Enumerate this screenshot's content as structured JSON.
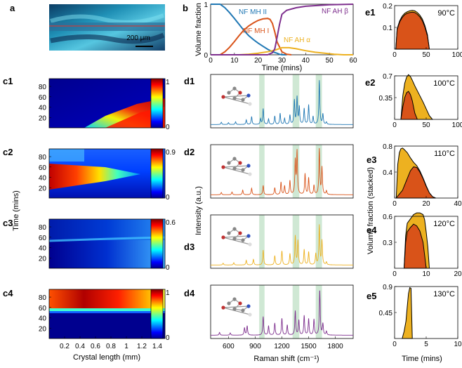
{
  "colors": {
    "mh2": "#1f77b4",
    "mh1": "#d95319",
    "ah_alpha": "#edb120",
    "ah_beta": "#7e2f8e",
    "highlight": "#cfe8d4",
    "stacked_dark": "#d95319",
    "stacked_light": "#edb120"
  },
  "panel_labels": {
    "a": "a",
    "b": "b",
    "c1": "c1",
    "c2": "c2",
    "c3": "c3",
    "c4": "c4",
    "d1": "d1",
    "d2": "d2",
    "d3": "d3",
    "d4": "d4",
    "e1": "e1",
    "e2": "e2",
    "e3": "e3",
    "e4": "e4",
    "e5": "e5"
  },
  "microscope": {
    "scalebar_label": "200 μm"
  },
  "chart_data": [
    {
      "id": "b",
      "type": "line",
      "xlabel": "Time (mins)",
      "ylabel": "Volume fraction",
      "xlim": [
        0,
        60
      ],
      "ylim": [
        0,
        1
      ],
      "xticks": [
        "0",
        "10",
        "20",
        "30",
        "40",
        "50",
        "60"
      ],
      "yticks": [
        "0",
        "1"
      ],
      "series": [
        {
          "name": "NF MH II",
          "color": "#1f77b4",
          "x": [
            0,
            4,
            6,
            8,
            10,
            12,
            14,
            16,
            18,
            20,
            22,
            24,
            26,
            28,
            29,
            30,
            32
          ],
          "y": [
            1,
            1,
            0.93,
            0.83,
            0.72,
            0.6,
            0.48,
            0.38,
            0.3,
            0.23,
            0.17,
            0.11,
            0.06,
            0.03,
            0.01,
            0,
            0
          ]
        },
        {
          "name": "NF MH I",
          "color": "#d95319",
          "x": [
            0,
            4,
            6,
            8,
            10,
            12,
            14,
            16,
            18,
            20,
            22,
            24,
            25,
            26,
            27,
            28,
            30,
            32,
            34
          ],
          "y": [
            0,
            0,
            0.06,
            0.15,
            0.26,
            0.38,
            0.49,
            0.57,
            0.63,
            0.68,
            0.71,
            0.72,
            0.7,
            0.62,
            0.45,
            0.25,
            0.06,
            0.01,
            0
          ]
        },
        {
          "name": "NF AH α",
          "color": "#edb120",
          "x": [
            0,
            12,
            16,
            20,
            24,
            27,
            30,
            33,
            36,
            40,
            44,
            48,
            52,
            56,
            60
          ],
          "y": [
            0,
            0,
            0.01,
            0.03,
            0.06,
            0.09,
            0.14,
            0.14,
            0.12,
            0.08,
            0.05,
            0.03,
            0.01,
            0,
            0
          ]
        },
        {
          "name": "NF AH β",
          "color": "#7e2f8e",
          "x": [
            0,
            24,
            26,
            27,
            28,
            29,
            30,
            32,
            36,
            40,
            50,
            60
          ],
          "y": [
            0,
            0,
            0.04,
            0.12,
            0.35,
            0.6,
            0.8,
            0.88,
            0.93,
            0.96,
            0.99,
            1
          ]
        }
      ]
    },
    {
      "id": "c",
      "type": "heatmap",
      "xlabel": "Crystal length (mm)",
      "ylabel": "Time (mins)",
      "xticks": [
        "0.2",
        "0.4",
        "0.6",
        "0.8",
        "1",
        "1.2",
        "1.4"
      ],
      "yticks": [
        "20",
        "40",
        "60",
        "80"
      ],
      "panels": [
        {
          "label": "c1",
          "colorbar_ticks": [
            "0",
            "1"
          ],
          "colorbar_range": [
            0,
            1
          ]
        },
        {
          "label": "c2",
          "colorbar_ticks": [
            "0",
            "0.9"
          ],
          "colorbar_range": [
            0,
            0.9
          ]
        },
        {
          "label": "c3",
          "colorbar_ticks": [
            "0",
            "0.6"
          ],
          "colorbar_range": [
            0,
            0.6
          ]
        },
        {
          "label": "c4",
          "colorbar_ticks": [
            "0",
            "1"
          ],
          "colorbar_range": [
            0,
            1
          ]
        }
      ]
    },
    {
      "id": "d",
      "type": "line",
      "xlabel": "Raman shift (cm⁻¹)",
      "ylabel": "Intensity (a.u.)",
      "xlim": [
        400,
        2000
      ],
      "xticks": [
        "600",
        "900",
        "1200",
        "1500",
        "1800"
      ],
      "highlight_bands_cm1": [
        [
          945,
          1005
        ],
        [
          1320,
          1395
        ],
        [
          1580,
          1650
        ]
      ],
      "series": [
        {
          "name": "d1",
          "color": "#1f77b4",
          "peaks": [
            [
              520,
              0.05
            ],
            [
              600,
              0.04
            ],
            [
              680,
              0.06
            ],
            [
              800,
              0.1
            ],
            [
              860,
              0.17
            ],
            [
              960,
              0.12
            ],
            [
              990,
              0.34
            ],
            [
              1050,
              0.12
            ],
            [
              1120,
              0.18
            ],
            [
              1180,
              0.24
            ],
            [
              1230,
              0.13
            ],
            [
              1290,
              0.2
            ],
            [
              1340,
              0.52
            ],
            [
              1370,
              0.58
            ],
            [
              1395,
              0.37
            ],
            [
              1450,
              0.34
            ],
            [
              1500,
              0.42
            ],
            [
              1550,
              0.17
            ],
            [
              1620,
              0.95
            ],
            [
              1660,
              0.22
            ],
            [
              1700,
              0.05
            ]
          ]
        },
        {
          "name": "d2",
          "color": "#d95319",
          "peaks": [
            [
              520,
              0.05
            ],
            [
              640,
              0.06
            ],
            [
              760,
              0.1
            ],
            [
              860,
              0.14
            ],
            [
              990,
              0.2
            ],
            [
              1120,
              0.15
            ],
            [
              1190,
              0.27
            ],
            [
              1230,
              0.19
            ],
            [
              1290,
              0.3
            ],
            [
              1350,
              0.72
            ],
            [
              1370,
              0.92
            ],
            [
              1460,
              0.45
            ],
            [
              1500,
              0.36
            ],
            [
              1560,
              0.2
            ],
            [
              1620,
              0.98
            ],
            [
              1650,
              0.58
            ],
            [
              1700,
              0.08
            ]
          ]
        },
        {
          "name": "d3",
          "color": "#edb120",
          "peaks": [
            [
              540,
              0.04
            ],
            [
              660,
              0.05
            ],
            [
              800,
              0.1
            ],
            [
              880,
              0.12
            ],
            [
              990,
              0.32
            ],
            [
              1120,
              0.2
            ],
            [
              1200,
              0.3
            ],
            [
              1290,
              0.24
            ],
            [
              1350,
              0.62
            ],
            [
              1380,
              0.52
            ],
            [
              1450,
              0.33
            ],
            [
              1500,
              0.28
            ],
            [
              1580,
              0.24
            ],
            [
              1620,
              0.85
            ],
            [
              1650,
              0.52
            ],
            [
              1700,
              0.06
            ]
          ]
        },
        {
          "name": "d4",
          "color": "#7e2f8e",
          "peaks": [
            [
              500,
              0.06
            ],
            [
              620,
              0.05
            ],
            [
              780,
              0.16
            ],
            [
              810,
              0.2
            ],
            [
              990,
              0.4
            ],
            [
              1050,
              0.2
            ],
            [
              1120,
              0.26
            ],
            [
              1200,
              0.36
            ],
            [
              1260,
              0.22
            ],
            [
              1350,
              0.52
            ],
            [
              1390,
              0.32
            ],
            [
              1450,
              0.42
            ],
            [
              1500,
              0.35
            ],
            [
              1560,
              0.34
            ],
            [
              1625,
              0.97
            ],
            [
              1660,
              0.24
            ],
            [
              1700,
              0.08
            ]
          ]
        }
      ]
    },
    {
      "id": "e",
      "type": "area",
      "ylabel": "Volume fraction (stacked)",
      "xlabel": "Time (mins)",
      "panels": [
        {
          "label": "e1",
          "temp": "90°C",
          "xlim": [
            0,
            100
          ],
          "ylim": [
            0,
            0.2
          ],
          "xticks": [
            "0",
            "50",
            "100"
          ],
          "yticks": [
            "0.1",
            "0.2"
          ],
          "ytick_values": [
            0.1,
            0.2
          ],
          "x": [
            2,
            4,
            8,
            12,
            16,
            20,
            24,
            28,
            32,
            36,
            40,
            44,
            48,
            52,
            55
          ],
          "lower": [
            0,
            0.09,
            0.125,
            0.145,
            0.158,
            0.165,
            0.168,
            0.17,
            0.168,
            0.16,
            0.148,
            0.13,
            0.1,
            0.06,
            0
          ],
          "upper": [
            0,
            0.094,
            0.13,
            0.152,
            0.165,
            0.172,
            0.176,
            0.178,
            0.176,
            0.168,
            0.156,
            0.138,
            0.108,
            0.066,
            0
          ]
        },
        {
          "label": "e2",
          "temp": "100°C",
          "xlim": [
            0,
            100
          ],
          "ylim": [
            0,
            0.7
          ],
          "xticks": [
            "0",
            "50",
            "100"
          ],
          "yticks": [
            "0.35",
            "0.7"
          ],
          "ytick_values": [
            0.35,
            0.7
          ],
          "x": [
            10,
            13,
            16,
            19,
            22,
            25,
            28,
            32,
            36,
            40,
            45,
            50,
            55,
            60
          ],
          "lower": [
            0,
            0.2,
            0.35,
            0.43,
            0.45,
            0.4,
            0.3,
            0.1,
            0,
            0,
            0,
            0,
            0,
            0
          ],
          "upper": [
            0,
            0.38,
            0.58,
            0.68,
            0.72,
            0.69,
            0.63,
            0.54,
            0.46,
            0.38,
            0.28,
            0.17,
            0.06,
            0
          ]
        },
        {
          "label": "e3",
          "temp": "110°C",
          "xlim": [
            0,
            40
          ],
          "ylim": [
            0,
            0.8
          ],
          "xticks": [
            "0",
            "20",
            "40"
          ],
          "yticks": [
            "0.4",
            "0.8"
          ],
          "ytick_values": [
            0.4,
            0.8
          ],
          "x": [
            1,
            2,
            3,
            4,
            5,
            6,
            8,
            10,
            12,
            14,
            16,
            18,
            20,
            22,
            24,
            26
          ],
          "lower": [
            0,
            0.03,
            0.06,
            0.09,
            0.12,
            0.18,
            0.3,
            0.42,
            0.48,
            0.47,
            0.4,
            0.3,
            0.18,
            0.08,
            0.02,
            0
          ],
          "upper": [
            0,
            0.52,
            0.7,
            0.76,
            0.77,
            0.75,
            0.7,
            0.62,
            0.55,
            0.5,
            0.42,
            0.31,
            0.19,
            0.08,
            0.02,
            0
          ]
        },
        {
          "label": "e4",
          "temp": "120°C",
          "xlim": [
            0,
            20
          ],
          "ylim": [
            0,
            0.6
          ],
          "xticks": [
            "0",
            "10",
            "20"
          ],
          "yticks": [
            "0.3",
            "0.6"
          ],
          "ytick_values": [
            0.3,
            0.6
          ],
          "x": [
            3,
            3.5,
            4,
            5,
            6,
            7,
            8,
            9,
            9.5,
            10,
            10.5,
            11
          ],
          "lower": [
            0,
            0.3,
            0.42,
            0.47,
            0.51,
            0.49,
            0.43,
            0.3,
            0.15,
            0,
            0,
            0
          ],
          "upper": [
            0,
            0.38,
            0.52,
            0.57,
            0.62,
            0.64,
            0.64,
            0.62,
            0.56,
            0.42,
            0.25,
            0
          ]
        },
        {
          "label": "e5",
          "temp": "130°C",
          "xlim": [
            0,
            10
          ],
          "ylim": [
            0,
            0.9
          ],
          "xticks": [
            "0",
            "5",
            "10"
          ],
          "yticks": [
            "0.45",
            "0.9"
          ],
          "ytick_values": [
            0.45,
            0.9
          ],
          "x": [
            1.2,
            1.5,
            1.8,
            2,
            2.2,
            2.4,
            2.6,
            2.8
          ],
          "lower": [
            0,
            0,
            0,
            0,
            0,
            0,
            0,
            0
          ],
          "upper": [
            0,
            0.12,
            0.3,
            0.55,
            0.78,
            0.88,
            0.87,
            0
          ]
        }
      ]
    }
  ]
}
